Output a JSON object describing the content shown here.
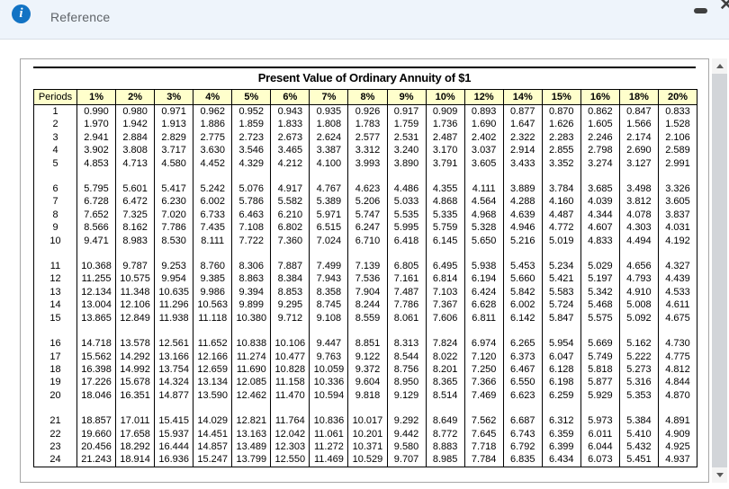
{
  "window": {
    "title": "Reference",
    "info_icon_glyph": "i",
    "close_icon_glyph": "✕"
  },
  "colors": {
    "topbar_bg": "#eef4fb",
    "info_icon_bg": "#1273c4",
    "table_header_bg": "#ffffcc",
    "table_border": "#000000"
  },
  "table": {
    "title": "Present Value of Ordinary Annuity of $1",
    "columns": [
      "Periods",
      "1%",
      "2%",
      "3%",
      "4%",
      "5%",
      "6%",
      "7%",
      "8%",
      "9%",
      "10%",
      "12%",
      "14%",
      "15%",
      "16%",
      "18%",
      "20%"
    ],
    "group_size": 5,
    "rows": [
      [
        "1",
        "0.990",
        "0.980",
        "0.971",
        "0.962",
        "0.952",
        "0.943",
        "0.935",
        "0.926",
        "0.917",
        "0.909",
        "0.893",
        "0.877",
        "0.870",
        "0.862",
        "0.847",
        "0.833"
      ],
      [
        "2",
        "1.970",
        "1.942",
        "1.913",
        "1.886",
        "1.859",
        "1.833",
        "1.808",
        "1.783",
        "1.759",
        "1.736",
        "1.690",
        "1.647",
        "1.626",
        "1.605",
        "1.566",
        "1.528"
      ],
      [
        "3",
        "2.941",
        "2.884",
        "2.829",
        "2.775",
        "2.723",
        "2.673",
        "2.624",
        "2.577",
        "2.531",
        "2.487",
        "2.402",
        "2.322",
        "2.283",
        "2.246",
        "2.174",
        "2.106"
      ],
      [
        "4",
        "3.902",
        "3.808",
        "3.717",
        "3.630",
        "3.546",
        "3.465",
        "3.387",
        "3.312",
        "3.240",
        "3.170",
        "3.037",
        "2.914",
        "2.855",
        "2.798",
        "2.690",
        "2.589"
      ],
      [
        "5",
        "4.853",
        "4.713",
        "4.580",
        "4.452",
        "4.329",
        "4.212",
        "4.100",
        "3.993",
        "3.890",
        "3.791",
        "3.605",
        "3.433",
        "3.352",
        "3.274",
        "3.127",
        "2.991"
      ],
      [
        "6",
        "5.795",
        "5.601",
        "5.417",
        "5.242",
        "5.076",
        "4.917",
        "4.767",
        "4.623",
        "4.486",
        "4.355",
        "4.111",
        "3.889",
        "3.784",
        "3.685",
        "3.498",
        "3.326"
      ],
      [
        "7",
        "6.728",
        "6.472",
        "6.230",
        "6.002",
        "5.786",
        "5.582",
        "5.389",
        "5.206",
        "5.033",
        "4.868",
        "4.564",
        "4.288",
        "4.160",
        "4.039",
        "3.812",
        "3.605"
      ],
      [
        "8",
        "7.652",
        "7.325",
        "7.020",
        "6.733",
        "6.463",
        "6.210",
        "5.971",
        "5.747",
        "5.535",
        "5.335",
        "4.968",
        "4.639",
        "4.487",
        "4.344",
        "4.078",
        "3.837"
      ],
      [
        "9",
        "8.566",
        "8.162",
        "7.786",
        "7.435",
        "7.108",
        "6.802",
        "6.515",
        "6.247",
        "5.995",
        "5.759",
        "5.328",
        "4.946",
        "4.772",
        "4.607",
        "4.303",
        "4.031"
      ],
      [
        "10",
        "9.471",
        "8.983",
        "8.530",
        "8.111",
        "7.722",
        "7.360",
        "7.024",
        "6.710",
        "6.418",
        "6.145",
        "5.650",
        "5.216",
        "5.019",
        "4.833",
        "4.494",
        "4.192"
      ],
      [
        "11",
        "10.368",
        "9.787",
        "9.253",
        "8.760",
        "8.306",
        "7.887",
        "7.499",
        "7.139",
        "6.805",
        "6.495",
        "5.938",
        "5.453",
        "5.234",
        "5.029",
        "4.656",
        "4.327"
      ],
      [
        "12",
        "11.255",
        "10.575",
        "9.954",
        "9.385",
        "8.863",
        "8.384",
        "7.943",
        "7.536",
        "7.161",
        "6.814",
        "6.194",
        "5.660",
        "5.421",
        "5.197",
        "4.793",
        "4.439"
      ],
      [
        "13",
        "12.134",
        "11.348",
        "10.635",
        "9.986",
        "9.394",
        "8.853",
        "8.358",
        "7.904",
        "7.487",
        "7.103",
        "6.424",
        "5.842",
        "5.583",
        "5.342",
        "4.910",
        "4.533"
      ],
      [
        "14",
        "13.004",
        "12.106",
        "11.296",
        "10.563",
        "9.899",
        "9.295",
        "8.745",
        "8.244",
        "7.786",
        "7.367",
        "6.628",
        "6.002",
        "5.724",
        "5.468",
        "5.008",
        "4.611"
      ],
      [
        "15",
        "13.865",
        "12.849",
        "11.938",
        "11.118",
        "10.380",
        "9.712",
        "9.108",
        "8.559",
        "8.061",
        "7.606",
        "6.811",
        "6.142",
        "5.847",
        "5.575",
        "5.092",
        "4.675"
      ],
      [
        "16",
        "14.718",
        "13.578",
        "12.561",
        "11.652",
        "10.838",
        "10.106",
        "9.447",
        "8.851",
        "8.313",
        "7.824",
        "6.974",
        "6.265",
        "5.954",
        "5.669",
        "5.162",
        "4.730"
      ],
      [
        "17",
        "15.562",
        "14.292",
        "13.166",
        "12.166",
        "11.274",
        "10.477",
        "9.763",
        "9.122",
        "8.544",
        "8.022",
        "7.120",
        "6.373",
        "6.047",
        "5.749",
        "5.222",
        "4.775"
      ],
      [
        "18",
        "16.398",
        "14.992",
        "13.754",
        "12.659",
        "11.690",
        "10.828",
        "10.059",
        "9.372",
        "8.756",
        "8.201",
        "7.250",
        "6.467",
        "6.128",
        "5.818",
        "5.273",
        "4.812"
      ],
      [
        "19",
        "17.226",
        "15.678",
        "14.324",
        "13.134",
        "12.085",
        "11.158",
        "10.336",
        "9.604",
        "8.950",
        "8.365",
        "7.366",
        "6.550",
        "6.198",
        "5.877",
        "5.316",
        "4.844"
      ],
      [
        "20",
        "18.046",
        "16.351",
        "14.877",
        "13.590",
        "12.462",
        "11.470",
        "10.594",
        "9.818",
        "9.129",
        "8.514",
        "7.469",
        "6.623",
        "6.259",
        "5.929",
        "5.353",
        "4.870"
      ],
      [
        "21",
        "18.857",
        "17.011",
        "15.415",
        "14.029",
        "12.821",
        "11.764",
        "10.836",
        "10.017",
        "9.292",
        "8.649",
        "7.562",
        "6.687",
        "6.312",
        "5.973",
        "5.384",
        "4.891"
      ],
      [
        "22",
        "19.660",
        "17.658",
        "15.937",
        "14.451",
        "13.163",
        "12.042",
        "11.061",
        "10.201",
        "9.442",
        "8.772",
        "7.645",
        "6.743",
        "6.359",
        "6.011",
        "5.410",
        "4.909"
      ],
      [
        "23",
        "20.456",
        "18.292",
        "16.444",
        "14.857",
        "13.489",
        "12.303",
        "11.272",
        "10.371",
        "9.580",
        "8.883",
        "7.718",
        "6.792",
        "6.399",
        "6.044",
        "5.432",
        "4.925"
      ],
      [
        "24",
        "21.243",
        "18.914",
        "16.936",
        "15.247",
        "13.799",
        "12.550",
        "11.469",
        "10.529",
        "9.707",
        "8.985",
        "7.784",
        "6.835",
        "6.434",
        "6.073",
        "5.451",
        "4.937"
      ]
    ]
  }
}
